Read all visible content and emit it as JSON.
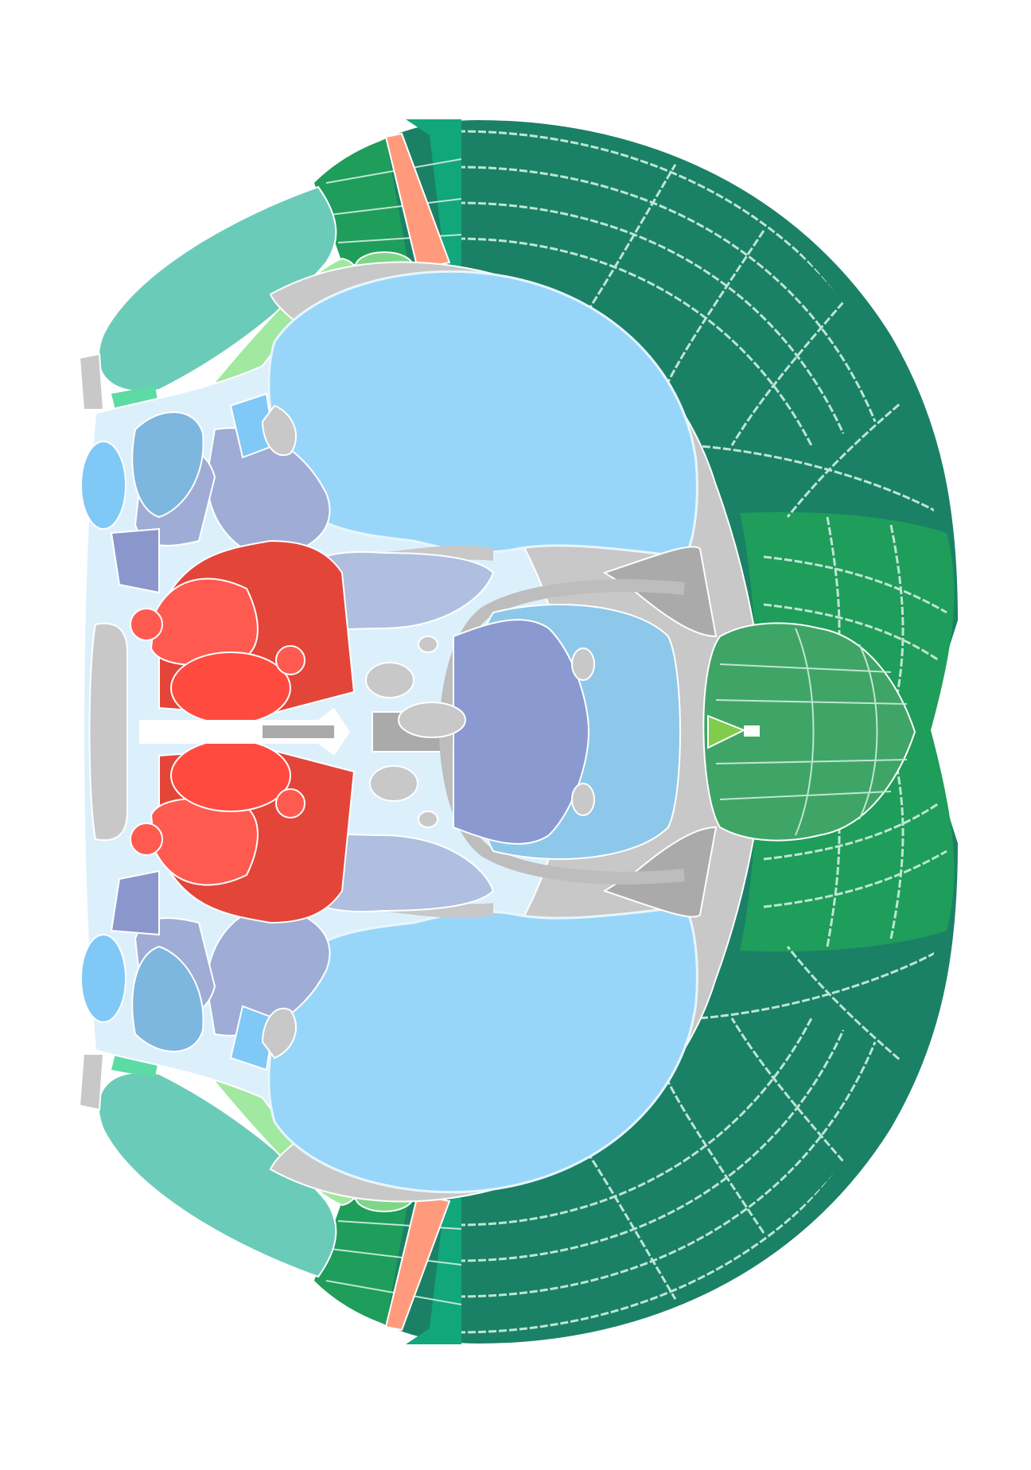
{
  "figure": {
    "kind": "coronal brain atlas section (rotated)",
    "background": "#ffffff",
    "labels": []
  },
  "palette": {
    "cortex_dark": "#1A8166",
    "cortex_mid": "#1F9D5A",
    "cortex_light": "#3FA566",
    "cortex_teal": "#12A67D",
    "cortex_seafoam": "#6BCBB9",
    "cortex_pale": "#A1E8A1",
    "cortex_small": "#7FD688",
    "cortex_accent": "#5CDBA5",
    "salmon": "#FF9B7C",
    "lime": "#80CD4B",
    "striatum": "#98D6F9",
    "blue_pale": "#DCF0FC",
    "blue_mid": "#80C8F6",
    "blue_steel": "#7DB6DE",
    "blue_light": "#8DC8EA",
    "lavender": "#9FACD5",
    "lavender_light": "#B0BFE0",
    "periwinkle": "#8B97CC",
    "slate": "#8A99D0",
    "red": "#FF4B3F",
    "red_dark": "#E44539",
    "red_light": "#FF5A50",
    "fiber_gray": "#C8C8C8",
    "ventricle_gray": "#AAAAAA",
    "outline": "#D9F2E6"
  }
}
